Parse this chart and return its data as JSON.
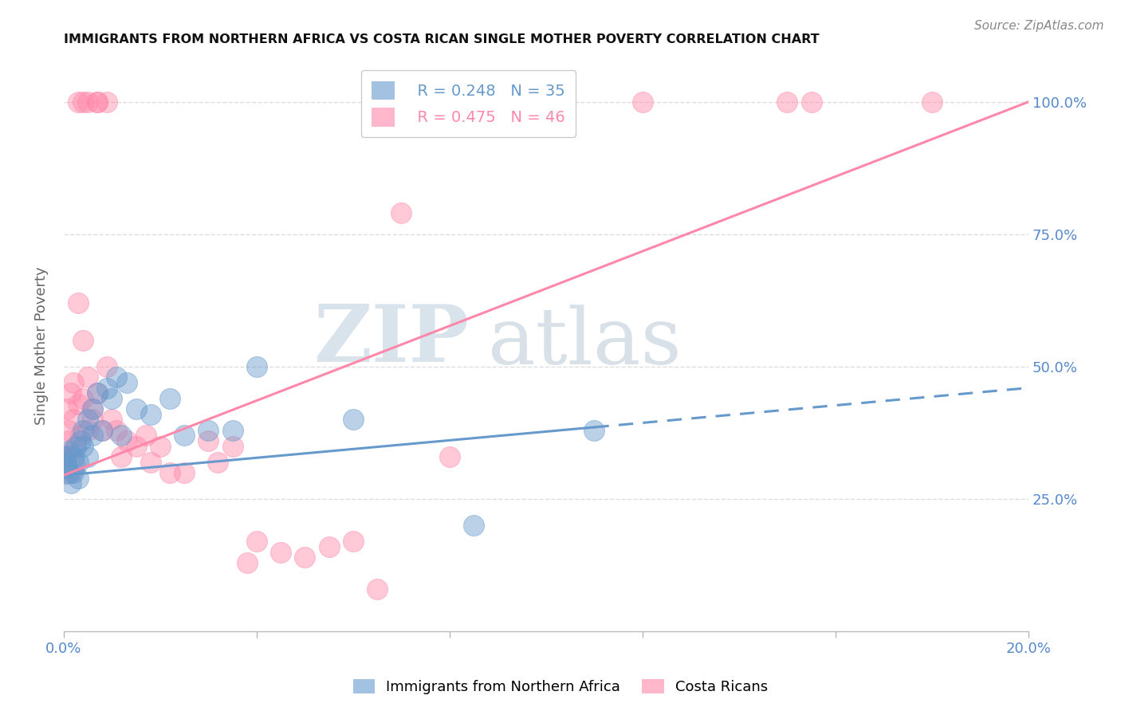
{
  "title": "IMMIGRANTS FROM NORTHERN AFRICA VS COSTA RICAN SINGLE MOTHER POVERTY CORRELATION CHART",
  "source": "Source: ZipAtlas.com",
  "ylabel": "Single Mother Poverty",
  "xlim": [
    0.0,
    0.2
  ],
  "ylim": [
    0.0,
    1.08
  ],
  "blue_color": "#6699CC",
  "pink_color": "#FF88AA",
  "blue_R": 0.248,
  "blue_N": 35,
  "pink_R": 0.475,
  "pink_N": 46,
  "blue_scatter_x": [
    0.0003,
    0.0005,
    0.0007,
    0.001,
    0.001,
    0.0015,
    0.002,
    0.002,
    0.0025,
    0.003,
    0.003,
    0.0035,
    0.004,
    0.004,
    0.005,
    0.005,
    0.006,
    0.006,
    0.007,
    0.008,
    0.009,
    0.01,
    0.011,
    0.012,
    0.013,
    0.015,
    0.018,
    0.022,
    0.025,
    0.03,
    0.035,
    0.04,
    0.06,
    0.085,
    0.11
  ],
  "blue_scatter_y": [
    0.33,
    0.32,
    0.31,
    0.3,
    0.34,
    0.28,
    0.33,
    0.3,
    0.35,
    0.32,
    0.29,
    0.36,
    0.38,
    0.35,
    0.4,
    0.33,
    0.42,
    0.37,
    0.45,
    0.38,
    0.46,
    0.44,
    0.48,
    0.37,
    0.47,
    0.42,
    0.41,
    0.44,
    0.37,
    0.38,
    0.38,
    0.5,
    0.4,
    0.2,
    0.38
  ],
  "pink_scatter_x": [
    0.0003,
    0.0005,
    0.0007,
    0.001,
    0.001,
    0.0015,
    0.002,
    0.002,
    0.0025,
    0.003,
    0.003,
    0.0035,
    0.004,
    0.004,
    0.005,
    0.005,
    0.006,
    0.006,
    0.007,
    0.008,
    0.009,
    0.01,
    0.011,
    0.012,
    0.013,
    0.015,
    0.017,
    0.018,
    0.02,
    0.022,
    0.025,
    0.03,
    0.032,
    0.035,
    0.038,
    0.04,
    0.045,
    0.05,
    0.055,
    0.06,
    0.065,
    0.07,
    0.08,
    0.12,
    0.155,
    0.18
  ],
  "pink_scatter_y": [
    0.33,
    0.32,
    0.42,
    0.38,
    0.36,
    0.45,
    0.4,
    0.47,
    0.35,
    0.62,
    0.43,
    0.37,
    0.55,
    0.44,
    0.48,
    0.38,
    0.4,
    0.42,
    0.45,
    0.38,
    0.5,
    0.4,
    0.38,
    0.33,
    0.36,
    0.35,
    0.37,
    0.32,
    0.35,
    0.3,
    0.3,
    0.36,
    0.32,
    0.35,
    0.13,
    0.17,
    0.15,
    0.14,
    0.16,
    0.17,
    0.08,
    0.79,
    0.33,
    1.0,
    1.0,
    1.0
  ],
  "pink_top_x": [
    0.003,
    0.004,
    0.005,
    0.007,
    0.007,
    0.009,
    0.15
  ],
  "pink_top_y": [
    1.0,
    1.0,
    1.0,
    1.0,
    1.0,
    1.0,
    1.0
  ],
  "blue_line_x0": 0.0,
  "blue_line_y0": 0.295,
  "blue_line_x1_solid": 0.11,
  "blue_line_x1_end": 0.2,
  "blue_line_y1": 0.46,
  "pink_line_x0": 0.0,
  "pink_line_y0": 0.295,
  "pink_line_x1": 0.2,
  "pink_line_y1": 1.0,
  "watermark_zip": "ZIP",
  "watermark_atlas": "atlas",
  "tick_color": "#5588CC",
  "grid_color": "#DDDDDD",
  "title_color": "#111111",
  "axis_label_color": "#666666"
}
